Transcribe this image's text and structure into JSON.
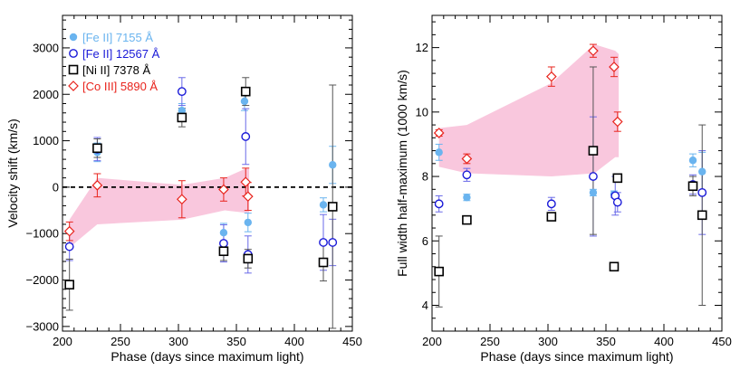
{
  "chart_data": [
    {
      "type": "scatter",
      "title": "",
      "xlabel": "Phase (days since maximum light)",
      "ylabel": "Velocity shift (km/s)",
      "xlim": [
        200,
        450
      ],
      "ylim": [
        -3100,
        3700
      ],
      "xticks": [
        200,
        250,
        300,
        350,
        400,
        450
      ],
      "yticks": [
        -3000,
        -2000,
        -1000,
        0,
        1000,
        2000,
        3000
      ],
      "zero_line": 0,
      "shaded_band": {
        "name": "",
        "x": [
          206,
          230,
          303,
          340,
          358,
          361
        ],
        "upper": [
          -700,
          200,
          50,
          200,
          400,
          400
        ],
        "lower": [
          -1300,
          -800,
          -700,
          -500,
          -550,
          -550
        ],
        "color": "#f9c7dd"
      },
      "legend": {
        "position": "top-left",
        "entries": [
          {
            "label": "[Fe II] 7155 Å",
            "color": "#6ab4ef",
            "marker": "filled-circle"
          },
          {
            "label": "[Fe II] 12567 Å",
            "color": "#1a1ad8",
            "marker": "open-circle"
          },
          {
            "label": "[Ni II] 7378 Å",
            "color": "#000000",
            "marker": "open-square"
          },
          {
            "label": "[Co III] 5890 Å",
            "color": "#e8231c",
            "marker": "open-diamond"
          }
        ]
      },
      "series": [
        {
          "name": "[Fe II] 7155 Å",
          "color": "#6ab4ef",
          "marker": "filled-circle",
          "errcolor": "#6ab4ef",
          "points": [
            {
              "x": 230,
              "y": 750,
              "err": 200
            },
            {
              "x": 303,
              "y": 1650,
              "err": 150
            },
            {
              "x": 339,
              "y": -980,
              "err": 200
            },
            {
              "x": 357,
              "y": 1850,
              "err": 200
            },
            {
              "x": 360,
              "y": -760,
              "err": 200
            },
            {
              "x": 425,
              "y": -380,
              "err": 150
            },
            {
              "x": 433,
              "y": 480,
              "err": 400
            }
          ]
        },
        {
          "name": "[Fe II] 12567 Å",
          "color": "#1a1ad8",
          "marker": "open-circle",
          "errcolor": "#6a6ae8",
          "points": [
            {
              "x": 206,
              "y": -1280,
              "err": 300
            },
            {
              "x": 230,
              "y": 820,
              "err": 250
            },
            {
              "x": 303,
              "y": 2060,
              "err": 300
            },
            {
              "x": 339,
              "y": -1210,
              "err": 400
            },
            {
              "x": 358,
              "y": 1090,
              "err": 600
            },
            {
              "x": 360,
              "y": -1450,
              "err": 400
            },
            {
              "x": 425,
              "y": -1190,
              "err": 600
            },
            {
              "x": 433,
              "y": -1190,
              "err": 500
            }
          ]
        },
        {
          "name": "[Ni II] 7378 Å",
          "color": "#000000",
          "marker": "open-square",
          "errcolor": "#555555",
          "points": [
            {
              "x": 206,
              "y": -2100,
              "err": 550
            },
            {
              "x": 230,
              "y": 840,
              "err": 200
            },
            {
              "x": 303,
              "y": 1500,
              "err": 200
            },
            {
              "x": 339,
              "y": -1380,
              "err": 200
            },
            {
              "x": 358,
              "y": 2060,
              "err": 300
            },
            {
              "x": 360,
              "y": -1540,
              "err": 200
            },
            {
              "x": 425,
              "y": -1620,
              "err": 400
            },
            {
              "x": 433,
              "y": -420,
              "err": 2620
            }
          ]
        },
        {
          "name": "[Co III] 5890 Å",
          "color": "#e8231c",
          "marker": "open-diamond",
          "errcolor": "#e8231c",
          "points": [
            {
              "x": 206,
              "y": -950,
              "err": 200
            },
            {
              "x": 230,
              "y": 40,
              "err": 250
            },
            {
              "x": 303,
              "y": -260,
              "err": 400
            },
            {
              "x": 339,
              "y": -50,
              "err": 250
            },
            {
              "x": 358,
              "y": 110,
              "err": 300
            },
            {
              "x": 360,
              "y": -200,
              "err": 300
            }
          ]
        }
      ]
    },
    {
      "type": "scatter",
      "title": "",
      "xlabel": "Phase (days since maximum light)",
      "ylabel": "Full width half-maximum (1000 km/s)",
      "xlim": [
        200,
        450
      ],
      "ylim": [
        3.2,
        13
      ],
      "xticks": [
        200,
        250,
        300,
        350,
        400,
        450
      ],
      "yticks": [
        4,
        6,
        8,
        10,
        12
      ],
      "zero_line": null,
      "shaded_band": {
        "name": "",
        "x": [
          206,
          230,
          303,
          340,
          358,
          361
        ],
        "upper": [
          9.5,
          9.6,
          10.9,
          12.1,
          11.9,
          11.8
        ],
        "lower": [
          8.3,
          8.1,
          8.0,
          8.1,
          8.6,
          8.6
        ],
        "color": "#f9c7dd"
      },
      "legend": null,
      "series": [
        {
          "name": "[Fe II] 7155 Å",
          "color": "#6ab4ef",
          "marker": "filled-circle",
          "errcolor": "#6ab4ef",
          "points": [
            {
              "x": 206,
              "y": 8.75,
              "err": 0.25
            },
            {
              "x": 230,
              "y": 7.35,
              "err": 0.1
            },
            {
              "x": 339,
              "y": 7.5,
              "err": 0.1
            },
            {
              "x": 357,
              "y": 7.45,
              "err": 0.1
            },
            {
              "x": 425,
              "y": 8.5,
              "err": 0.2
            },
            {
              "x": 433,
              "y": 8.15,
              "err": 0.6
            }
          ]
        },
        {
          "name": "[Fe II] 12567 Å",
          "color": "#1a1ad8",
          "marker": "open-circle",
          "errcolor": "#6a6ae8",
          "points": [
            {
              "x": 206,
              "y": 7.15,
              "err": 0.25
            },
            {
              "x": 230,
              "y": 8.05,
              "err": 0.2
            },
            {
              "x": 303,
              "y": 7.15,
              "err": 0.2
            },
            {
              "x": 339,
              "y": 8.0,
              "err": 1.85
            },
            {
              "x": 358,
              "y": 7.4,
              "err": 0.6
            },
            {
              "x": 360,
              "y": 7.2,
              "err": 0.3
            },
            {
              "x": 425,
              "y": 7.75,
              "err": 0.3
            },
            {
              "x": 433,
              "y": 7.5,
              "err": 1.3
            }
          ]
        },
        {
          "name": "[Ni II] 7378 Å",
          "color": "#000000",
          "marker": "open-square",
          "errcolor": "#555555",
          "points": [
            {
              "x": 206,
              "y": 5.05,
              "err": 1.1
            },
            {
              "x": 230,
              "y": 6.65,
              "err": 0.1
            },
            {
              "x": 303,
              "y": 6.75,
              "err": 0.1
            },
            {
              "x": 339,
              "y": 8.8,
              "err": 2.6
            },
            {
              "x": 357,
              "y": 5.2,
              "err": 0.1
            },
            {
              "x": 360,
              "y": 7.95,
              "err": 0.1
            },
            {
              "x": 425,
              "y": 7.7,
              "err": 0.3
            },
            {
              "x": 433,
              "y": 6.8,
              "err": 2.8
            }
          ]
        },
        {
          "name": "[Co III] 5890 Å",
          "color": "#e8231c",
          "marker": "open-diamond",
          "errcolor": "#e8231c",
          "points": [
            {
              "x": 206,
              "y": 9.35,
              "err": 0.1
            },
            {
              "x": 230,
              "y": 8.55,
              "err": 0.15
            },
            {
              "x": 303,
              "y": 11.1,
              "err": 0.3
            },
            {
              "x": 339,
              "y": 11.9,
              "err": 0.2
            },
            {
              "x": 357,
              "y": 11.4,
              "err": 0.3
            },
            {
              "x": 360,
              "y": 9.7,
              "err": 0.3
            }
          ]
        }
      ]
    }
  ]
}
